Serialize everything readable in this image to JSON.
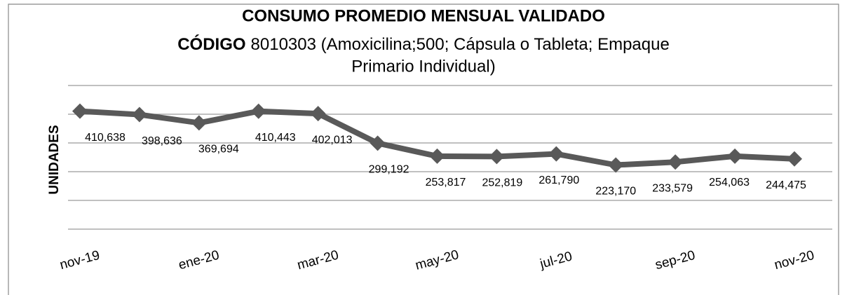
{
  "chart_data": {
    "type": "line",
    "title": "CONSUMO PROMEDIO MENSUAL VALIDADO",
    "subtitle": [
      "CÓDIGO",
      "8010303 (Amoxicilina;500; Cápsula o Tableta; Empaque",
      "Primario Individual)"
    ],
    "y_label": "UNIDADES",
    "categories": [
      "nov-19",
      null,
      "ene-20",
      null,
      "mar-20",
      null,
      "may-20",
      null,
      "jul-20",
      null,
      "sep-20",
      null,
      "nov-20"
    ],
    "series": [
      {
        "name": "Consumo",
        "color": "#595959",
        "values": [
          410638,
          398636,
          369694,
          410443,
          402013,
          299192,
          253817,
          252819,
          261790,
          223170,
          233579,
          254063,
          244475
        ],
        "value_labels": [
          "410,638",
          "398,636",
          "369,694",
          "410,443",
          "402,013",
          "299,192",
          "253,817",
          "252,819",
          "261,790",
          "223,170",
          "233,579",
          "254,063",
          "244,475"
        ]
      }
    ],
    "ylim": [
      0,
      500000
    ],
    "yticks": [
      0,
      100000,
      200000,
      300000,
      400000,
      500000
    ],
    "grid": true
  }
}
